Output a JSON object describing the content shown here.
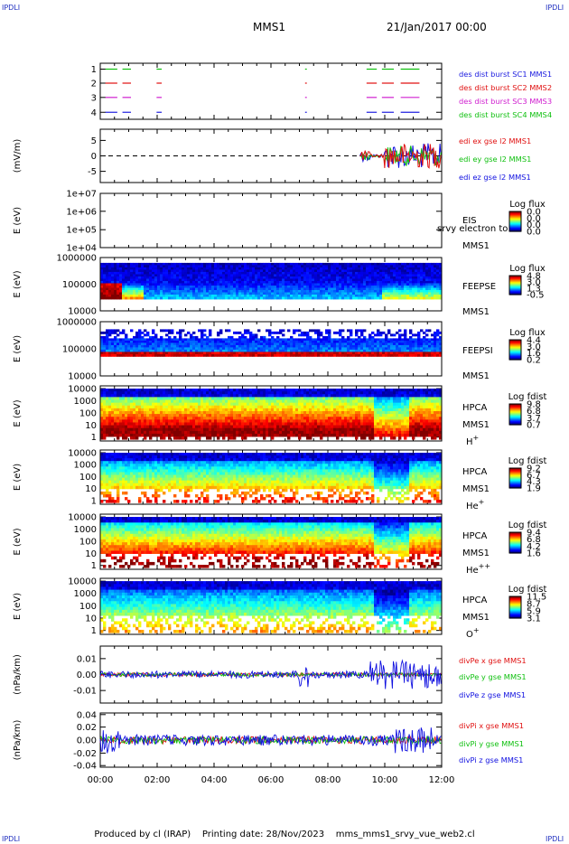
{
  "corners": {
    "tl": "IPDLI",
    "tr": "IPDLI",
    "bl": "IPDLI",
    "br": "IPDLI"
  },
  "header": {
    "mission": "MMS1",
    "date": "21/Jan/2017 00:00"
  },
  "footer": {
    "produced": "Produced by cl (IRAP)",
    "printing": "Printing date: 28/Nov/2023",
    "file": "mms_mms1_srvy_vue_web2.cl"
  },
  "colors": {
    "red": "#e01010",
    "green": "#10c010",
    "blue": "#1010e0",
    "magenta": "#d020d0"
  },
  "time_axis": {
    "ticks": [
      "00:00",
      "02:00",
      "04:00",
      "06:00",
      "08:00",
      "10:00",
      "12:00"
    ]
  },
  "chart_data": [
    {
      "type": "line",
      "ylim": [
        0.5,
        4.5
      ],
      "yticks": [
        "1",
        "2",
        "3",
        "4"
      ],
      "legend": [
        "des dist burst SC1 MMS1",
        "des dist burst SC2 MMS2",
        "des dist burst SC3 MMS3",
        "des dist burst SC4 MMS4"
      ],
      "legend_colors": [
        "#2020e0",
        "#e01010",
        "#d020d0",
        "#10c010"
      ]
    },
    {
      "type": "line",
      "ylabel": "(mV/m)",
      "ylim": [
        -7,
        7
      ],
      "yticks": [
        "5",
        "0",
        "-5"
      ],
      "series": [
        {
          "name": "edi ex gse l2 MMS1"
        },
        {
          "name": "edi ey gse l2 MMS1"
        },
        {
          "name": "edi ez gse l2 MMS1"
        }
      ],
      "legend_colors": [
        "#e01010",
        "#10c010",
        "#1010e0"
      ]
    },
    {
      "type": "heatmap",
      "ylabel": "E (eV)",
      "yticks": [
        "1e+07",
        "1e+06",
        "1e+05",
        "1e+04"
      ],
      "instrument": [
        "EIS",
        "MMS1"
      ],
      "overlap_text": "srvy electron to",
      "cb_title": "Log flux",
      "cb_ticks": [
        "0.0",
        "0.0",
        "0.0",
        "0.0"
      ]
    },
    {
      "type": "heatmap",
      "ylabel": "E (eV)",
      "yticks": [
        "1000000",
        "100000",
        "10000"
      ],
      "instrument": [
        "FEEPSE",
        "MMS1"
      ],
      "cb_title": "Log flux",
      "cb_ticks": [
        "4.8",
        "3.0",
        "1.3",
        "-0.5"
      ]
    },
    {
      "type": "heatmap",
      "ylabel": "E (eV)",
      "yticks": [
        "1000000",
        "100000",
        "10000"
      ],
      "instrument": [
        "FEEPSI",
        "MMS1"
      ],
      "cb_title": "Log flux",
      "cb_ticks": [
        "4.4",
        "3.0",
        "1.6",
        "0.2"
      ]
    },
    {
      "type": "heatmap",
      "ylabel": "E (eV)",
      "yticks": [
        "10000",
        "1000",
        "100",
        "10",
        "1"
      ],
      "instrument": [
        "HPCA",
        "MMS1"
      ],
      "species": "H",
      "charge": "+",
      "cb_title": "Log fdist",
      "cb_ticks": [
        "9.8",
        "6.8",
        "3.7",
        "0.7"
      ]
    },
    {
      "type": "heatmap",
      "ylabel": "E (eV)",
      "yticks": [
        "10000",
        "1000",
        "100",
        "10",
        "1"
      ],
      "instrument": [
        "HPCA",
        "MMS1"
      ],
      "species": "He",
      "charge": "+",
      "cb_title": "Log fdist",
      "cb_ticks": [
        "9.2",
        "6.7",
        "4.3",
        "1.9"
      ]
    },
    {
      "type": "heatmap",
      "ylabel": "E (eV)",
      "yticks": [
        "10000",
        "1000",
        "100",
        "10",
        "1"
      ],
      "instrument": [
        "HPCA",
        "MMS1"
      ],
      "species": "He",
      "charge": "++",
      "cb_title": "Log fdist",
      "cb_ticks": [
        "9.4",
        "6.8",
        "4.2",
        "1.6"
      ]
    },
    {
      "type": "heatmap",
      "ylabel": "E (eV)",
      "yticks": [
        "10000",
        "1000",
        "100",
        "10",
        "1"
      ],
      "instrument": [
        "HPCA",
        "MMS1"
      ],
      "species": "O",
      "charge": "+",
      "cb_title": "Log fdist",
      "cb_ticks": [
        "11.5",
        "8.7",
        "5.9",
        "3.1"
      ]
    },
    {
      "type": "line",
      "ylabel": "(nPa/km)",
      "ylim": [
        -0.018,
        0.018
      ],
      "yticks": [
        "0.01",
        "0.00",
        "-0.01"
      ],
      "series": [
        {
          "name": "divPe x gse MMS1"
        },
        {
          "name": "divPe y gse MMS1"
        },
        {
          "name": "divPe z gse MMS1"
        }
      ],
      "legend_colors": [
        "#e01010",
        "#10c010",
        "#1010e0"
      ]
    },
    {
      "type": "line",
      "ylabel": "(nPa/km)",
      "ylim": [
        -0.048,
        0.048
      ],
      "yticks": [
        "0.04",
        "0.02",
        "0.00",
        "-0.02",
        "-0.04"
      ],
      "series": [
        {
          "name": "divPi x gse MMS1"
        },
        {
          "name": "divPi y gse MMS1"
        },
        {
          "name": "divPi z gse MMS1"
        }
      ],
      "legend_colors": [
        "#e01010",
        "#10c010",
        "#1010e0"
      ]
    }
  ]
}
